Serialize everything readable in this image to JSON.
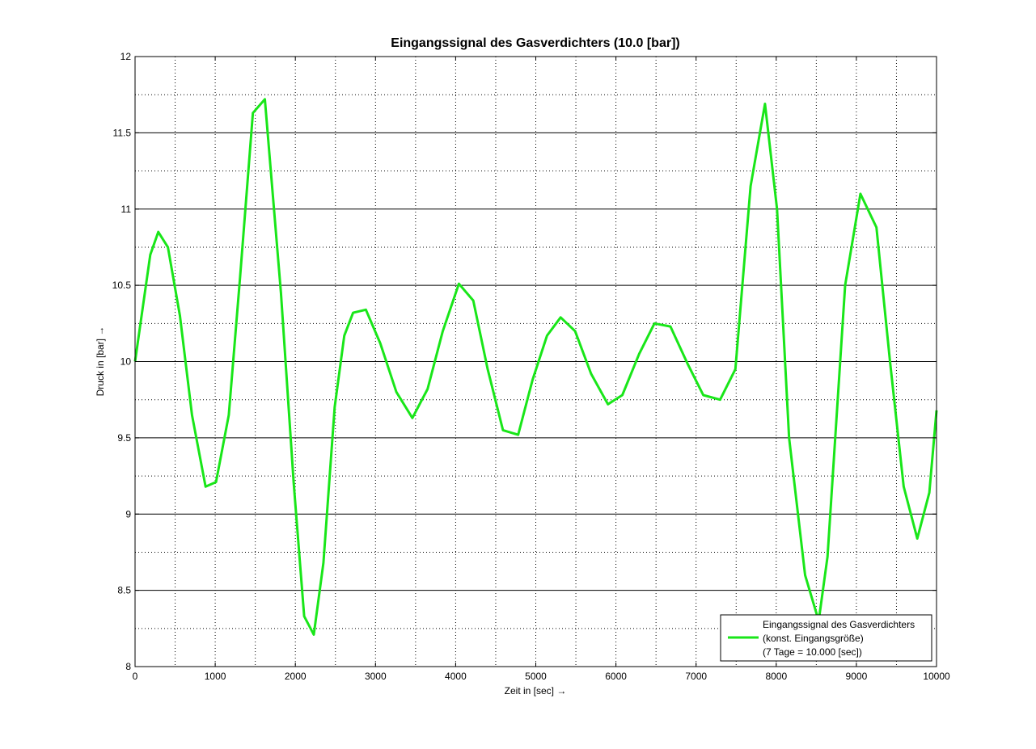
{
  "chart_data": {
    "type": "line",
    "title": "Eingangssignal des Gasverdichters (10.0 [bar])",
    "xlabel": "Zeit in [sec] →",
    "ylabel": "Druck in [bar] →",
    "xlim": [
      0,
      10000
    ],
    "ylim": [
      8,
      12
    ],
    "xticks": [
      0,
      1000,
      2000,
      3000,
      4000,
      5000,
      6000,
      7000,
      8000,
      9000,
      10000
    ],
    "xtick_labels": [
      "0",
      "1000",
      "2000",
      "3000",
      "4000",
      "5000",
      "6000",
      "7000",
      "8000",
      "9000",
      "10000"
    ],
    "yticks": [
      8,
      8.5,
      9,
      9.5,
      10,
      10.5,
      11,
      11.5,
      12
    ],
    "ytick_labels": [
      "8",
      "8.5",
      "9",
      "9.5",
      "10",
      "10.5",
      "11",
      "11.5",
      "12"
    ],
    "grid": true,
    "legend_position": "bottom-right",
    "legend_lines": [
      "Eingangssignal des Gasverdichters",
      "(konst. Eingangsgröße)",
      "(7 Tage = 10.000 [sec])"
    ],
    "line_color": "#19e619",
    "series": [
      {
        "x": [
          0,
          190,
          290,
          410,
          560,
          710,
          880,
          1010,
          1170,
          1310,
          1470,
          1620,
          1820,
          1980,
          2110,
          2230,
          2350,
          2490,
          2610,
          2720,
          2880,
          3060,
          3260,
          3460,
          3650,
          3840,
          4040,
          4220,
          4400,
          4590,
          4780,
          4960,
          5140,
          5310,
          5490,
          5690,
          5900,
          6080,
          6290,
          6480,
          6680,
          6890,
          7090,
          7300,
          7490,
          7680,
          7860,
          8010,
          8160,
          8360,
          8530,
          8640,
          8860,
          9050,
          9250,
          9420,
          9590,
          9760,
          9910,
          10000
        ],
        "y": [
          10.0,
          10.7,
          10.85,
          10.75,
          10.3,
          9.65,
          9.18,
          9.21,
          9.65,
          10.55,
          11.63,
          11.72,
          10.45,
          9.2,
          8.33,
          8.21,
          8.68,
          9.7,
          10.17,
          10.32,
          10.34,
          10.12,
          9.8,
          9.63,
          9.82,
          10.2,
          10.51,
          10.4,
          9.95,
          9.55,
          9.52,
          9.88,
          10.17,
          10.29,
          10.2,
          9.92,
          9.72,
          9.78,
          10.05,
          10.25,
          10.23,
          9.99,
          9.78,
          9.75,
          9.95,
          11.15,
          11.69,
          11.0,
          9.5,
          8.6,
          8.3,
          8.72,
          10.5,
          11.1,
          10.88,
          10.0,
          9.18,
          8.84,
          9.14,
          9.68
        ]
      }
    ]
  }
}
